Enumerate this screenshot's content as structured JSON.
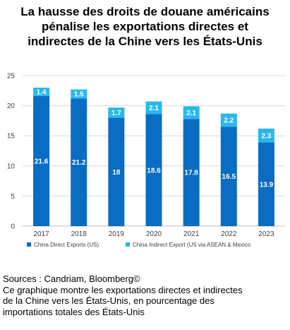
{
  "title_lines": [
    "La hausse des droits de douane américains",
    "pénalise les exportations directes et",
    "indirectes de la Chine vers les États-Unis"
  ],
  "footer": {
    "source": "Sources : Candriam, Bloomberg©",
    "description_lines": [
      "Ce graphique montre les exportations directes et indirectes",
      "de la Chine vers les États-Unis, en pourcentage des",
      "importations totales des États-Unis"
    ]
  },
  "colors": {
    "direct": "#0a6cc2",
    "indirect": "#29b8ee",
    "grid": "#d9d9d9",
    "axis_text": "#404040"
  },
  "chart_data": {
    "type": "bar",
    "stacked": true,
    "categories": [
      "2017",
      "2018",
      "2019",
      "2020",
      "2021",
      "2022",
      "2023"
    ],
    "series": [
      {
        "name": "China Direct Exports (US)",
        "values": [
          21.6,
          21.2,
          18,
          18.6,
          17.8,
          16.5,
          13.9
        ]
      },
      {
        "name": "China Indirect Export (US via ASEAN & Mexico",
        "values": [
          1.4,
          1.5,
          1.7,
          2.1,
          2.1,
          2.2,
          2.3
        ]
      }
    ],
    "data_labels": [
      [
        "21.6",
        "21.2",
        "18",
        "18.6",
        "17.8",
        "16.5",
        "13.9"
      ],
      [
        "1.4",
        "1.5",
        "1.7",
        "2.1",
        "2.1",
        "2.2",
        "2.3"
      ]
    ],
    "ylim": [
      0,
      25
    ],
    "yticks": [
      0,
      5,
      10,
      15,
      20,
      25
    ],
    "grid": true,
    "legend_position": "bottom"
  }
}
